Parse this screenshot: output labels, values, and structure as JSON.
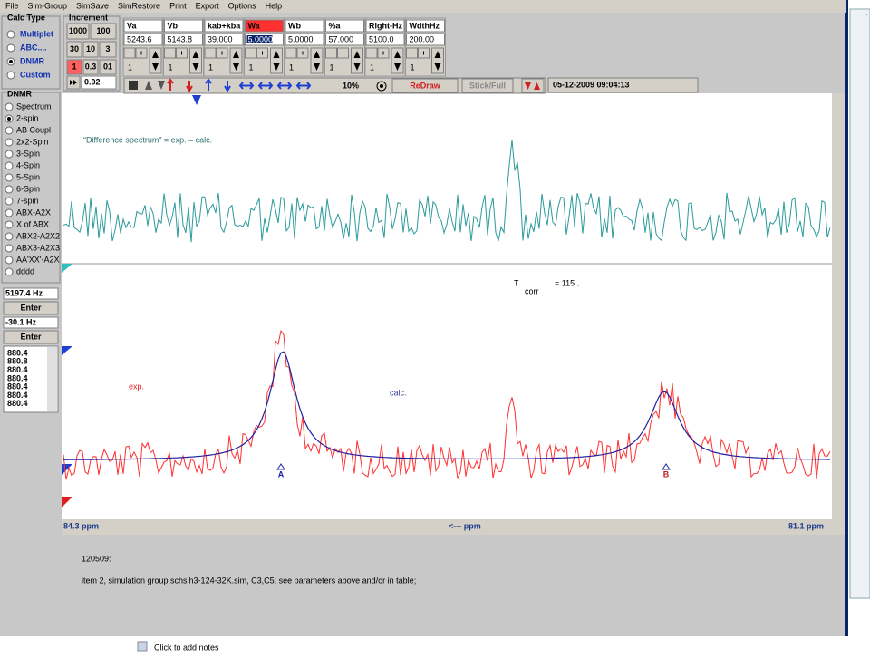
{
  "menu": [
    "File",
    "Sim-Group",
    "SimSave",
    "SimRestore",
    "Print",
    "Export",
    "Options",
    "Help"
  ],
  "calc_type": {
    "title": "Calc Type",
    "options": [
      "Multiplet",
      "ABC....",
      "DNMR",
      "Custom"
    ],
    "selected": 2
  },
  "increment": {
    "title": "Increment",
    "buttons": [
      "1000",
      "100",
      "30",
      "10",
      "3",
      "1",
      "0.3",
      "01"
    ],
    "field": "0.02"
  },
  "params": [
    {
      "name": "Va",
      "value": "5243.6",
      "step": "1"
    },
    {
      "name": "Vb",
      "value": "5143.8",
      "step": "1"
    },
    {
      "name": "kab+kba",
      "value": "39.000",
      "step": "1"
    },
    {
      "name": "Wa",
      "value": "5.0000",
      "step": "1"
    },
    {
      "name": "Wb",
      "value": "5.0000",
      "step": "1"
    },
    {
      "name": "%a",
      "value": "57.000",
      "step": "1"
    },
    {
      "name": "Right-Hz",
      "value": "5100.0",
      "step": "1"
    },
    {
      "name": "WdthHz",
      "value": "200.00",
      "step": "1"
    }
  ],
  "toolbar": {
    "zoom": "10%",
    "redraw": "ReDraw",
    "stick": "Stick/Full",
    "date": "05-12-2009  09:04:13"
  },
  "dnmr": {
    "title": "DNMR",
    "options": [
      "Spectrum",
      "2-spin",
      "AB Coupl",
      "2x2-Spin",
      "3-Spin",
      "4-Spin",
      "5-Spin",
      "6-Spin",
      "7-spin",
      "ABX-A2X",
      "X of ABX",
      "ABX2-A2X2",
      "ABX3-A2X3",
      "AA'XX'-A2X",
      "dddd"
    ],
    "selected": 1
  },
  "fields": {
    "hz1": "5197.4 Hz",
    "enter1": "Enter",
    "hz2": "-30.1 Hz",
    "enter2": "Enter",
    "list": [
      "880.4",
      "880.8",
      "880.4",
      "880.4",
      "880.4",
      "880.4",
      "880.4"
    ]
  },
  "spectrum": {
    "difference": "“Difference spectrum” = exp. – calc.",
    "tcorr_t": "T",
    "tcorr_sub": "corr",
    "tcorr_value": "= 115 .",
    "exp": "exp.",
    "calc": "calc.",
    "peak_a": "A",
    "peak_b": "B",
    "axis_left": "84.3 ppm",
    "axis_center": "<--- ppm",
    "axis_right": "81.1 ppm"
  },
  "notes": {
    "line1": "120509:",
    "line2": "item 2, simulation group schsih3-124-32K.sim,  C3,C5; see parameters above and/or in table;"
  },
  "footer": "Click to add notes"
}
